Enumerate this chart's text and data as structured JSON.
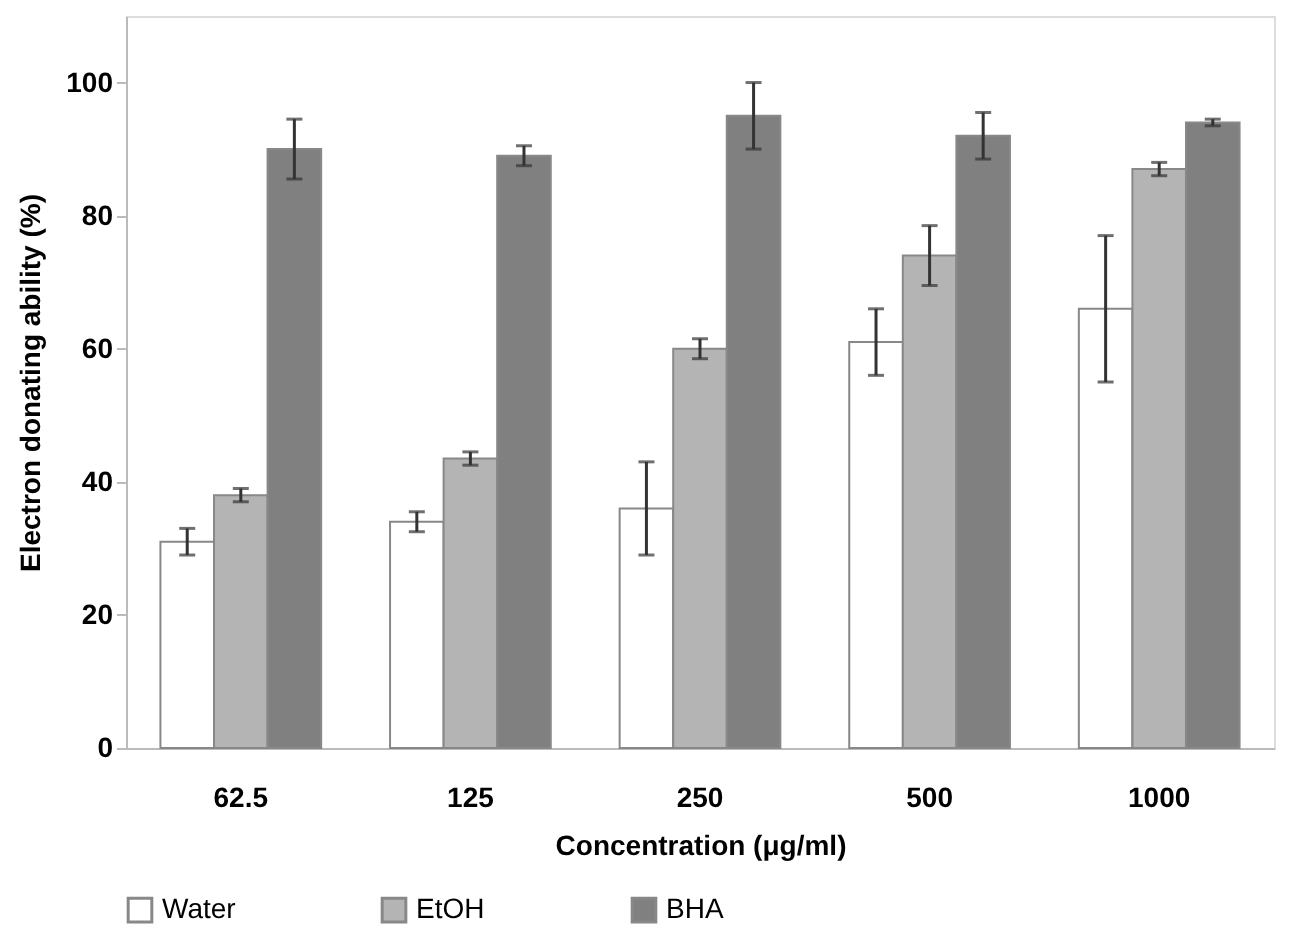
{
  "chart_data": {
    "type": "bar",
    "xlabel": "Concentration (μg/ml)",
    "ylabel": "Electron donating ability (%)",
    "categories": [
      "62.5",
      "125",
      "250",
      "500",
      "1000"
    ],
    "series": [
      {
        "name": "Water",
        "color": "#ffffff",
        "values": [
          31,
          34,
          36,
          61,
          66
        ],
        "errors": [
          2,
          1.5,
          7,
          5,
          11
        ]
      },
      {
        "name": "EtOH",
        "color": "#b4b4b4",
        "values": [
          38,
          43.5,
          60,
          74,
          87
        ],
        "errors": [
          1,
          1,
          1.5,
          4.5,
          1
        ]
      },
      {
        "name": "BHA",
        "color": "#808080",
        "values": [
          90,
          89,
          95,
          92,
          94
        ],
        "errors": [
          4.5,
          1.5,
          5,
          3.5,
          0.5
        ]
      }
    ],
    "ylim": [
      0,
      110
    ],
    "yticks": [
      0,
      20,
      40,
      60,
      80,
      100
    ],
    "grid": false,
    "legend": "bottom"
  }
}
